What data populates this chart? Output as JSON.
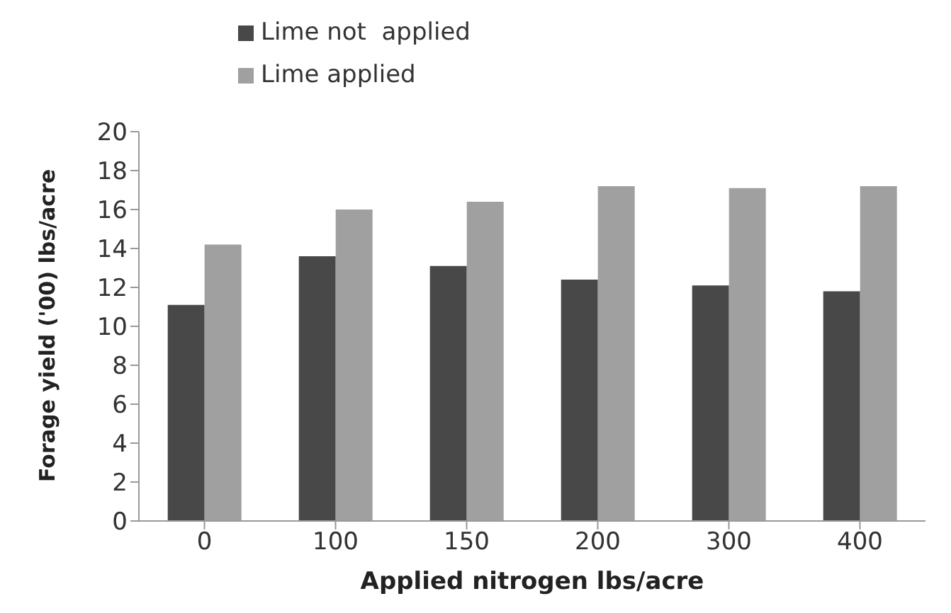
{
  "chart_data": {
    "type": "bar",
    "xlabel": "Applied nitrogen lbs/acre",
    "ylabel": "Forage yield ('00) lbs/acre",
    "categories": [
      "0",
      "100",
      "150",
      "200",
      "300",
      "400"
    ],
    "series": [
      {
        "name": "Lime not  applied",
        "color": "#484848",
        "values": [
          11.1,
          13.6,
          13.1,
          12.4,
          12.1,
          11.8
        ]
      },
      {
        "name": "Lime applied",
        "color": "#a0a0a0",
        "values": [
          14.2,
          16.0,
          16.4,
          17.2,
          17.1,
          17.2
        ]
      }
    ],
    "ylim": [
      0,
      20
    ],
    "yticks": [
      0,
      2,
      4,
      6,
      8,
      10,
      12,
      14,
      16,
      18,
      20
    ],
    "grid": false,
    "legend": "top left"
  }
}
